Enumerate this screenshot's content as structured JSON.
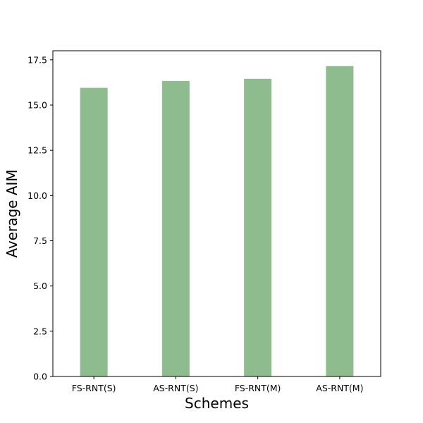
{
  "chart_data": {
    "type": "bar",
    "title": "",
    "xlabel": "Schemes",
    "ylabel": "Average AIM",
    "categories": [
      "FS-RNT(S)",
      "AS-RNT(S)",
      "FS-RNT(M)",
      "AS-RNT(M)"
    ],
    "values": [
      15.95,
      16.33,
      16.45,
      17.15
    ],
    "ylim": [
      0,
      18.0
    ],
    "yticks": [
      "0.0",
      "2.5",
      "5.0",
      "7.5",
      "10.0",
      "12.5",
      "15.0",
      "17.5"
    ],
    "grid": false,
    "bar_color": "#8fbc8f"
  }
}
